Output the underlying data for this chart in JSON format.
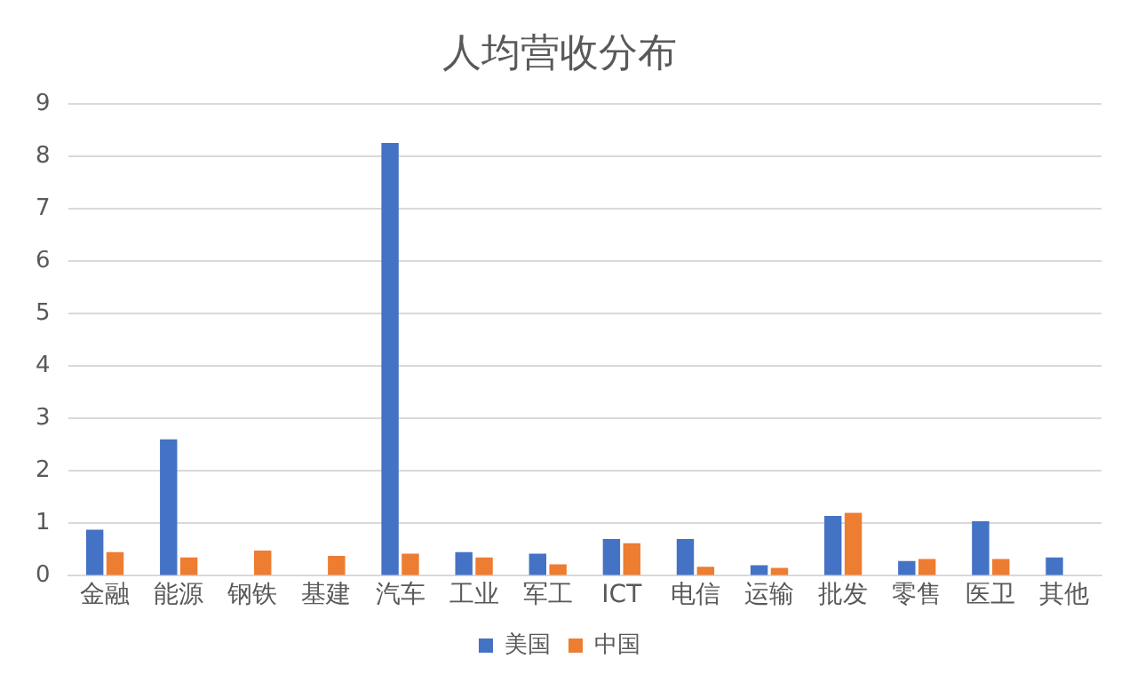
{
  "chart_data": {
    "type": "bar",
    "title": "人均营收分布",
    "categories": [
      "金融",
      "能源",
      "钢铁",
      "基建",
      "汽车",
      "工业",
      "军工",
      "ICT",
      "电信",
      "运输",
      "批发",
      "零售",
      "医卫",
      "其他"
    ],
    "series": [
      {
        "name": "美国",
        "color": "#4472c4",
        "values": [
          0.88,
          2.6,
          null,
          null,
          8.25,
          0.45,
          0.42,
          0.7,
          0.7,
          0.2,
          1.14,
          0.28,
          1.04,
          0.35
        ]
      },
      {
        "name": "中国",
        "color": "#ed7d31",
        "values": [
          0.45,
          0.35,
          0.48,
          0.38,
          0.42,
          0.35,
          0.22,
          0.62,
          0.17,
          0.15,
          1.2,
          0.32,
          0.32,
          null
        ]
      }
    ],
    "ylim": [
      0,
      9
    ],
    "yticks": [
      0,
      1,
      2,
      3,
      4,
      5,
      6,
      7,
      8,
      9
    ],
    "grid": "y",
    "legend": "bottom"
  }
}
